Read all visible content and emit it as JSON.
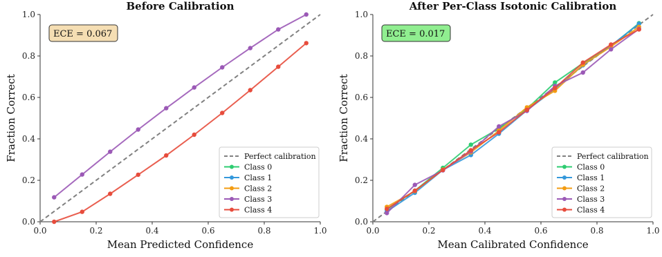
{
  "chart_data": [
    {
      "type": "line",
      "title": "Before Calibration",
      "xlabel": "Mean Predicted Confidence",
      "ylabel": "Fraction Correct",
      "xlim": [
        0,
        1
      ],
      "ylim": [
        0,
        1
      ],
      "xticks": [
        "0.0",
        "0.2",
        "0.4",
        "0.6",
        "0.8",
        "1.0"
      ],
      "yticks": [
        "0.0",
        "0.2",
        "0.4",
        "0.6",
        "0.8",
        "1.0"
      ],
      "annotation": {
        "text": "ECE = 0.067",
        "background": "#f5deb3"
      },
      "legend_position": "lower-right",
      "reference": {
        "name": "Perfect calibration",
        "color": "#808080",
        "points": [
          [
            0,
            0
          ],
          [
            1,
            1
          ]
        ]
      },
      "series": [
        {
          "name": "Class 0",
          "color": "#2ecc71",
          "points": []
        },
        {
          "name": "Class 1",
          "color": "#3498db",
          "points": []
        },
        {
          "name": "Class 2",
          "color": "#f39c12",
          "points": []
        },
        {
          "name": "Class 3",
          "color": "#9b59b6",
          "points": [
            [
              0.05,
              0.118
            ],
            [
              0.15,
              0.228
            ],
            [
              0.25,
              0.338
            ],
            [
              0.35,
              0.445
            ],
            [
              0.45,
              0.548
            ],
            [
              0.55,
              0.648
            ],
            [
              0.65,
              0.745
            ],
            [
              0.75,
              0.838
            ],
            [
              0.85,
              0.928
            ],
            [
              0.95,
              1.0
            ]
          ]
        },
        {
          "name": "Class 4",
          "color": "#e74c3c",
          "points": [
            [
              0.05,
              0.0
            ],
            [
              0.15,
              0.048
            ],
            [
              0.25,
              0.135
            ],
            [
              0.35,
              0.227
            ],
            [
              0.45,
              0.32
            ],
            [
              0.55,
              0.42
            ],
            [
              0.65,
              0.525
            ],
            [
              0.75,
              0.635
            ],
            [
              0.85,
              0.748
            ],
            [
              0.95,
              0.862
            ]
          ]
        }
      ]
    },
    {
      "type": "line",
      "title": "After Per-Class Isotonic Calibration",
      "xlabel": "Mean Calibrated Confidence",
      "ylabel": "Fraction Correct",
      "xlim": [
        0,
        1
      ],
      "ylim": [
        0,
        1
      ],
      "xticks": [
        "0.0",
        "0.2",
        "0.4",
        "0.6",
        "0.8",
        "1.0"
      ],
      "yticks": [
        "0.0",
        "0.2",
        "0.4",
        "0.6",
        "0.8",
        "1.0"
      ],
      "annotation": {
        "text": "ECE = 0.017",
        "background": "#90ee90"
      },
      "legend_position": "lower-right",
      "reference": {
        "name": "Perfect calibration",
        "color": "#808080",
        "points": [
          [
            0,
            0
          ],
          [
            1,
            1
          ]
        ]
      },
      "series": [
        {
          "name": "Class 0",
          "color": "#2ecc71",
          "points": [
            [
              0.05,
              0.06
            ],
            [
              0.15,
              0.15
            ],
            [
              0.25,
              0.26
            ],
            [
              0.35,
              0.372
            ],
            [
              0.45,
              0.45
            ],
            [
              0.55,
              0.545
            ],
            [
              0.65,
              0.672
            ],
            [
              0.75,
              0.765
            ],
            [
              0.85,
              0.848
            ],
            [
              0.95,
              0.958
            ]
          ]
        },
        {
          "name": "Class 1",
          "color": "#3498db",
          "points": [
            [
              0.05,
              0.05
            ],
            [
              0.15,
              0.14
            ],
            [
              0.25,
              0.25
            ],
            [
              0.35,
              0.322
            ],
            [
              0.45,
              0.425
            ],
            [
              0.55,
              0.538
            ],
            [
              0.65,
              0.64
            ],
            [
              0.75,
              0.755
            ],
            [
              0.85,
              0.85
            ],
            [
              0.95,
              0.955
            ]
          ]
        },
        {
          "name": "Class 2",
          "color": "#f39c12",
          "points": [
            [
              0.05,
              0.072
            ],
            [
              0.15,
              0.148
            ],
            [
              0.25,
              0.252
            ],
            [
              0.35,
              0.335
            ],
            [
              0.45,
              0.44
            ],
            [
              0.55,
              0.552
            ],
            [
              0.65,
              0.632
            ],
            [
              0.75,
              0.758
            ],
            [
              0.85,
              0.845
            ],
            [
              0.95,
              0.94
            ]
          ]
        },
        {
          "name": "Class 3",
          "color": "#9b59b6",
          "points": [
            [
              0.05,
              0.042
            ],
            [
              0.15,
              0.178
            ],
            [
              0.25,
              0.248
            ],
            [
              0.35,
              0.34
            ],
            [
              0.45,
              0.46
            ],
            [
              0.55,
              0.535
            ],
            [
              0.65,
              0.655
            ],
            [
              0.75,
              0.72
            ],
            [
              0.85,
              0.832
            ],
            [
              0.95,
              0.93
            ]
          ]
        },
        {
          "name": "Class 4",
          "color": "#e74c3c",
          "points": [
            [
              0.05,
              0.062
            ],
            [
              0.15,
              0.15
            ],
            [
              0.25,
              0.25
            ],
            [
              0.35,
              0.345
            ],
            [
              0.45,
              0.432
            ],
            [
              0.55,
              0.54
            ],
            [
              0.65,
              0.645
            ],
            [
              0.75,
              0.768
            ],
            [
              0.85,
              0.855
            ],
            [
              0.95,
              0.928
            ]
          ]
        }
      ]
    }
  ]
}
